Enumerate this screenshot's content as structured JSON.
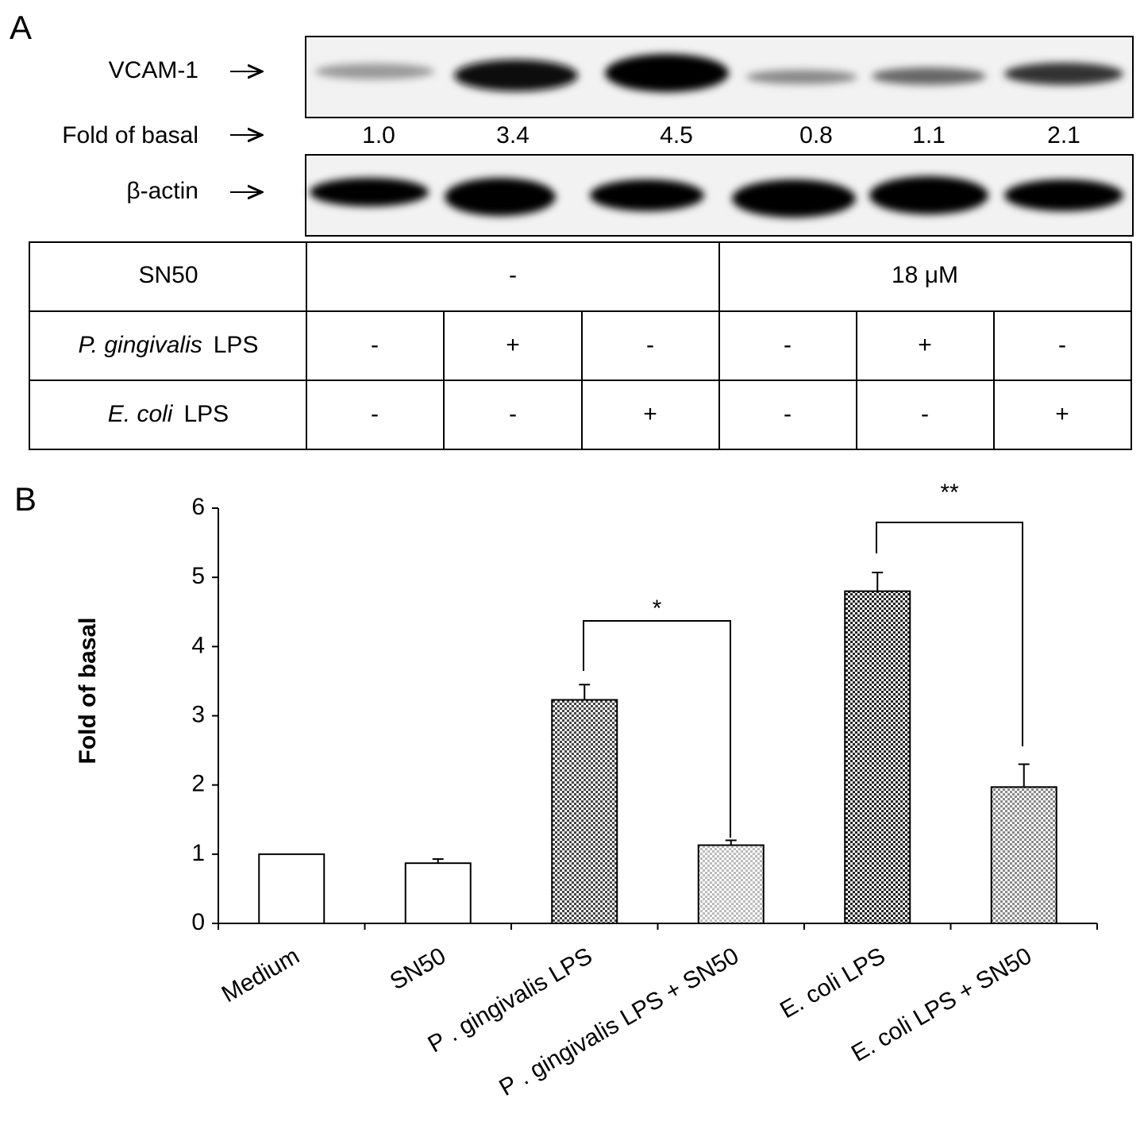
{
  "panel_a": {
    "label": "A",
    "blot": {
      "rows": [
        "VCAM-1",
        "Fold of basal",
        "β-actin"
      ],
      "fold_values": [
        "1.0",
        "3.4",
        "4.5",
        "0.8",
        "1.1",
        "2.1"
      ]
    },
    "table": {
      "rows": [
        {
          "label": "SN50",
          "cells": [
            "-",
            "18 μM"
          ]
        },
        {
          "label": {
            "italic": "P. gingivalis",
            "text": "LPS"
          },
          "cells": [
            "-",
            "+",
            "-",
            "-",
            "+",
            "-"
          ]
        },
        {
          "label": {
            "italic": "E. coli",
            "text": "LPS"
          },
          "cells": [
            "-",
            "-",
            "+",
            "-",
            "-",
            "+"
          ]
        }
      ]
    }
  },
  "chart_data": {
    "type": "bar",
    "panel_label": "B",
    "ylabel": "Fold of basal",
    "categories": [
      "Medium",
      "SN50",
      "P . gingivalis LPS",
      "P . gingivalis LPS + SN50",
      "E. coli LPS",
      "E. coli LPS + SN50"
    ],
    "values": [
      1.0,
      0.87,
      3.23,
      1.13,
      4.8,
      1.97
    ],
    "errors": [
      null,
      0.06,
      0.22,
      0.07,
      0.27,
      0.33
    ],
    "colors": [
      "#ffffff",
      "#ffffff",
      "#444444",
      "#bbbbbb",
      "#222222",
      "#888888"
    ],
    "ylim": [
      0,
      6
    ],
    "yticks": [
      0,
      1,
      2,
      3,
      4,
      5,
      6
    ],
    "annotations": [
      "*",
      "**"
    ]
  }
}
